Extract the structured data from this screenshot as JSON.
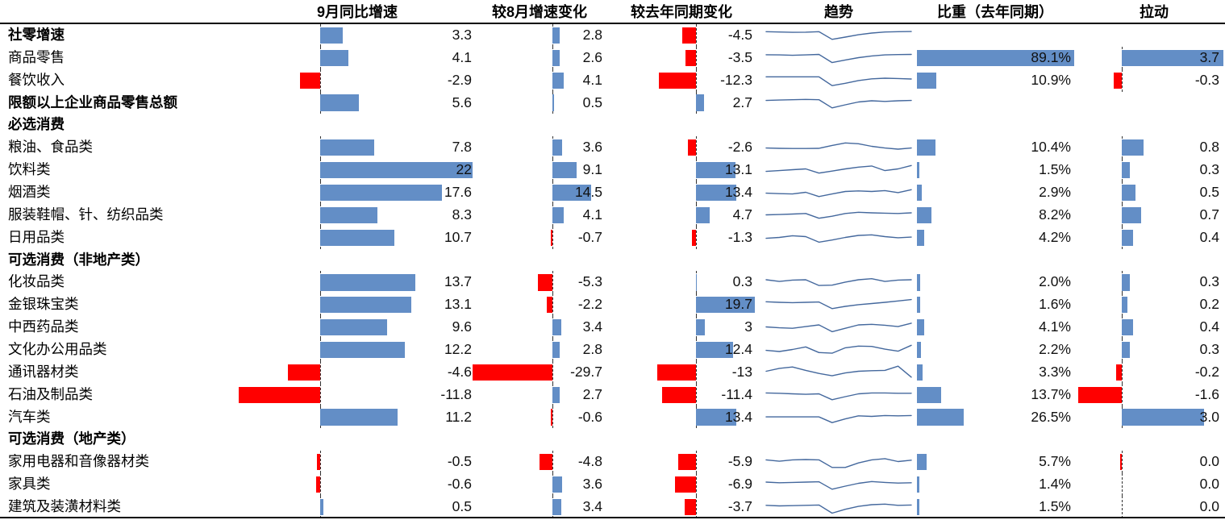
{
  "colors": {
    "bar_positive": "#638ec6",
    "bar_negative": "#ff0000",
    "sparkline": "#44689d",
    "rule": "#000000"
  },
  "chart_data": {
    "type": "table",
    "title": "",
    "columns": {
      "yoy": "9月同比增速",
      "mom": "较8月增速变化",
      "yoy_chg": "较去年同期变化",
      "trend": "趋势",
      "weight": "比重（去年同期）",
      "pull": "拉动"
    },
    "axis_ranges": {
      "yoy": [
        -11.8,
        22
      ],
      "mom": [
        -29.7,
        14.5
      ],
      "yoy_chg": [
        -13,
        19.7
      ],
      "weight": [
        0,
        89.1
      ],
      "pull": [
        -1.6,
        3.7
      ]
    },
    "rows": [
      {
        "label": "社零增速",
        "bold": true,
        "yoy": "3.3",
        "mom": "2.8",
        "yoy_chg": "-4.5",
        "weight": null,
        "pull": null,
        "trend": [
          30,
          32,
          34,
          33,
          30,
          75,
          62,
          48,
          38,
          32,
          30,
          29
        ]
      },
      {
        "label": "商品零售",
        "bold": false,
        "yoy": "4.1",
        "mom": "2.6",
        "yoy_chg": "-3.5",
        "weight": "89.1%",
        "pull": "3.7",
        "trend": [
          33,
          34,
          36,
          34,
          31,
          79,
          64,
          50,
          40,
          34,
          32,
          31
        ]
      },
      {
        "label": "餐饮收入",
        "bold": false,
        "yoy": "-2.9",
        "mom": "4.1",
        "yoy_chg": "-12.3",
        "weight": "10.9%",
        "pull": "-0.3",
        "trend": [
          30,
          30,
          30,
          30,
          30,
          82,
          68,
          52,
          42,
          38,
          40,
          43
        ]
      },
      {
        "label": "限额以上企业商品零售总额",
        "bold": true,
        "yoy": "5.6",
        "mom": "0.5",
        "yoy_chg": "2.7",
        "weight": null,
        "pull": null,
        "trend": [
          36,
          34,
          32,
          30,
          32,
          80,
          62,
          45,
          38,
          42,
          38,
          36
        ]
      },
      {
        "label": "必选消费",
        "bold": true,
        "yoy": null,
        "mom": null,
        "yoy_chg": null,
        "weight": null,
        "pull": null,
        "trend": null
      },
      {
        "label": "粮油、食品类",
        "bold": false,
        "yoy": "7.8",
        "mom": "3.6",
        "yoy_chg": "-2.6",
        "weight": "10.4%",
        "pull": "0.8",
        "trend": [
          55,
          57,
          58,
          58,
          57,
          40,
          25,
          30,
          45,
          55,
          62,
          55
        ]
      },
      {
        "label": "饮料类",
        "bold": false,
        "yoy": "22",
        "mom": "9.1",
        "yoy_chg": "13.1",
        "weight": "1.5%",
        "pull": "0.3",
        "trend": [
          60,
          55,
          50,
          45,
          70,
          58,
          45,
          35,
          28,
          55,
          45,
          25
        ]
      },
      {
        "label": "烟酒类",
        "bold": false,
        "yoy": "17.6",
        "mom": "14.5",
        "yoy_chg": "13.4",
        "weight": "2.9%",
        "pull": "0.5",
        "trend": [
          55,
          58,
          60,
          50,
          75,
          60,
          45,
          42,
          45,
          40,
          52,
          35
        ]
      },
      {
        "label": "服装鞋帽、针、纺织品类",
        "bold": false,
        "yoy": "8.3",
        "mom": "4.1",
        "yoy_chg": "4.7",
        "weight": "8.2%",
        "pull": "0.7",
        "trend": [
          50,
          48,
          45,
          42,
          70,
          58,
          42,
          35,
          38,
          40,
          42,
          38
        ]
      },
      {
        "label": "日用品类",
        "bold": false,
        "yoy": "10.7",
        "mom": "-0.7",
        "yoy_chg": "-1.3",
        "weight": "4.2%",
        "pull": "0.4",
        "trend": [
          55,
          50,
          40,
          45,
          78,
          65,
          50,
          38,
          35,
          45,
          52,
          48
        ]
      },
      {
        "label": "可选消费（非地产类）",
        "bold": true,
        "yoy": null,
        "mom": null,
        "yoy_chg": null,
        "weight": null,
        "pull": null,
        "trend": null
      },
      {
        "label": "化妆品类",
        "bold": false,
        "yoy": "13.7",
        "mom": "-5.3",
        "yoy_chg": "0.3",
        "weight": "2.0%",
        "pull": "0.3",
        "trend": [
          38,
          48,
          40,
          38,
          72,
          70,
          52,
          38,
          32,
          48,
          40,
          38
        ]
      },
      {
        "label": "金银珠宝类",
        "bold": false,
        "yoy": "13.1",
        "mom": "-2.2",
        "yoy_chg": "19.7",
        "weight": "1.6%",
        "pull": "0.2",
        "trend": [
          35,
          38,
          40,
          38,
          36,
          75,
          62,
          52,
          45,
          38,
          30,
          22
        ]
      },
      {
        "label": "中西药品类",
        "bold": false,
        "yoy": "9.6",
        "mom": "3.4",
        "yoy_chg": "3",
        "weight": "4.1%",
        "pull": "0.4",
        "trend": [
          50,
          55,
          58,
          48,
          38,
          78,
          58,
          38,
          35,
          40,
          48,
          28
        ]
      },
      {
        "label": "文化办公用品类",
        "bold": false,
        "yoy": "12.2",
        "mom": "2.8",
        "yoy_chg": "12.4",
        "weight": "2.2%",
        "pull": "0.3",
        "trend": [
          55,
          62,
          50,
          35,
          68,
          72,
          40,
          30,
          32,
          48,
          60,
          25
        ]
      },
      {
        "label": "通讯器材类",
        "bold": false,
        "yoy": "-4.6",
        "mom": "-29.7",
        "yoy_chg": "-13",
        "weight": "3.3%",
        "pull": "-0.2",
        "trend": [
          45,
          28,
          20,
          40,
          58,
          72,
          55,
          45,
          42,
          40,
          15,
          80
        ]
      },
      {
        "label": "石油及制品类",
        "bold": false,
        "yoy": "-11.8",
        "mom": "2.7",
        "yoy_chg": "-11.4",
        "weight": "13.7%",
        "pull": "-1.6",
        "trend": [
          40,
          42,
          45,
          48,
          45,
          80,
          62,
          45,
          40,
          40,
          42,
          42
        ]
      },
      {
        "label": "汽车类",
        "bold": false,
        "yoy": "11.2",
        "mom": "-0.6",
        "yoy_chg": "13.4",
        "weight": "26.5%",
        "pull": "3.0",
        "trend": [
          48,
          48,
          48,
          48,
          48,
          82,
          60,
          42,
          45,
          40,
          42,
          40
        ]
      },
      {
        "label": "可选消费（地产类）",
        "bold": true,
        "yoy": null,
        "mom": null,
        "yoy_chg": null,
        "weight": null,
        "pull": null,
        "trend": null
      },
      {
        "label": "家用电器和音像器材类",
        "bold": false,
        "yoy": "-0.5",
        "mom": "-4.8",
        "yoy_chg": "-5.9",
        "weight": "5.7%",
        "pull": "0.0",
        "pull_negative_zero": true,
        "trend": [
          40,
          48,
          40,
          38,
          40,
          85,
          85,
          58,
          40,
          33,
          50,
          42
        ]
      },
      {
        "label": "家具类",
        "bold": false,
        "yoy": "-0.6",
        "mom": "3.6",
        "yoy_chg": "-6.9",
        "weight": "1.4%",
        "pull": "0.0",
        "trend": [
          38,
          42,
          40,
          38,
          36,
          80,
          62,
          45,
          35,
          40,
          44,
          42
        ]
      },
      {
        "label": "建筑及装潢材料类",
        "bold": false,
        "yoy": "0.5",
        "mom": "3.4",
        "yoy_chg": "-3.7",
        "weight": "1.5%",
        "pull": "0.0",
        "trend": [
          42,
          45,
          44,
          42,
          40,
          88,
          65,
          48,
          38,
          35,
          42,
          40
        ]
      }
    ]
  }
}
